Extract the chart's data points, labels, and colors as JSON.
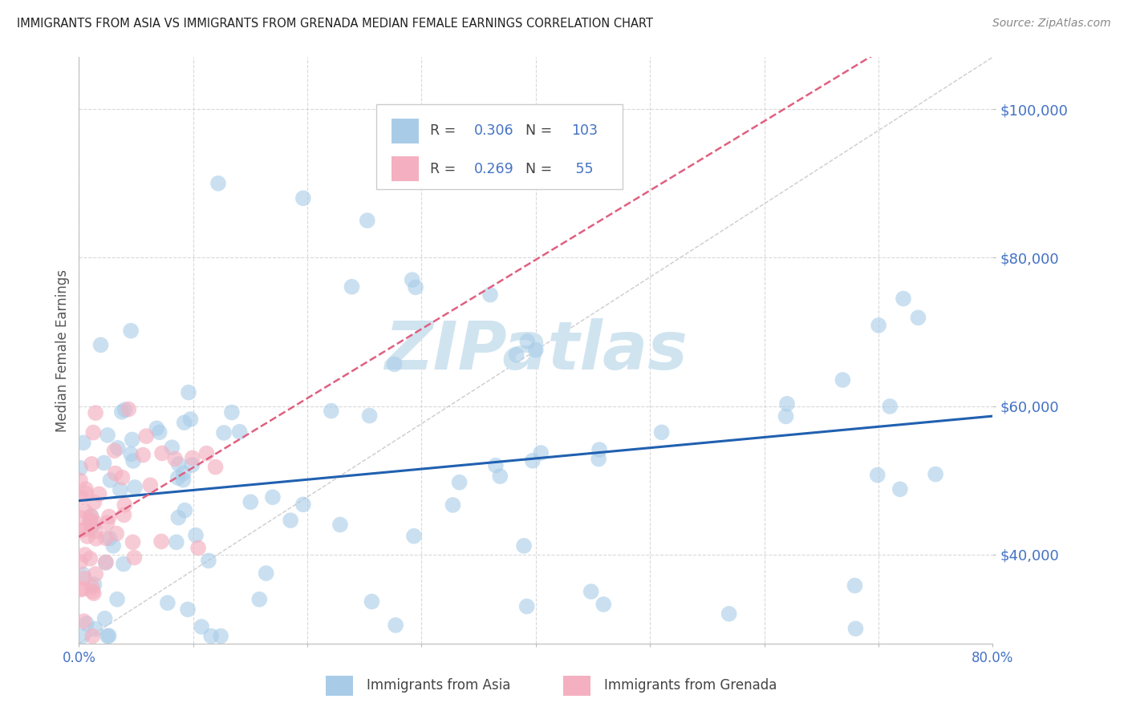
{
  "title": "IMMIGRANTS FROM ASIA VS IMMIGRANTS FROM GRENADA MEDIAN FEMALE EARNINGS CORRELATION CHART",
  "source": "Source: ZipAtlas.com",
  "ylabel": "Median Female Earnings",
  "xlim": [
    0.0,
    0.8
  ],
  "ylim": [
    28000,
    107000
  ],
  "yticks": [
    40000,
    60000,
    80000,
    100000
  ],
  "ytick_labels": [
    "$40,000",
    "$60,000",
    "$80,000",
    "$100,000"
  ],
  "legend_R_asia": "0.306",
  "legend_N_asia": "103",
  "legend_R_grenada": "0.269",
  "legend_N_grenada": "55",
  "asia_color": "#a8cce8",
  "grenada_color": "#f4b0c0",
  "line_asia_color": "#2060b0",
  "line_grenada_color": "#e06080",
  "watermark": "ZIPatlas",
  "watermark_color": "#d0e4f0",
  "background_color": "#ffffff",
  "grid_color": "#d0d0d0",
  "title_color": "#222222",
  "axis_label_color": "#555555",
  "tick_label_color": "#4472c4",
  "source_color": "#888888",
  "legend_label_color": "#4472c4"
}
